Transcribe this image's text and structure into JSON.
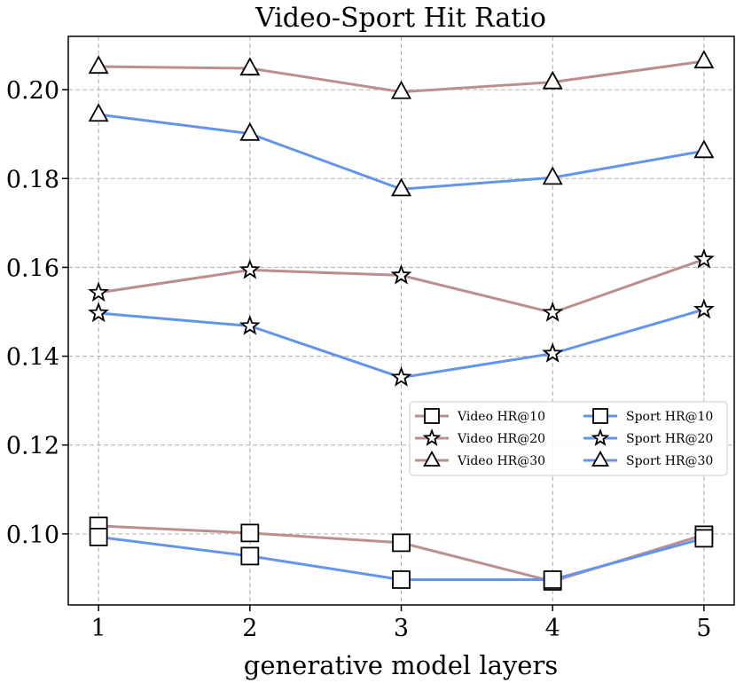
{
  "chart_data": {
    "type": "line",
    "title": "Video-Sport Hit Ratio",
    "xlabel": "generative model layers",
    "ylabel": "",
    "x": [
      1,
      2,
      3,
      4,
      5
    ],
    "xticks": [
      "1",
      "2",
      "3",
      "4",
      "5"
    ],
    "xlim": [
      0.8,
      5.2
    ],
    "ylim": [
      0.084,
      0.212
    ],
    "yticks": [
      0.1,
      0.12,
      0.14,
      0.16,
      0.18,
      0.2
    ],
    "ytick_labels": [
      "0.10",
      "0.12",
      "0.14",
      "0.16",
      "0.18",
      "0.20"
    ],
    "grid": true,
    "legend_position": "center-right",
    "colors": {
      "video": "#bc8f8f",
      "sport": "#6495ed"
    },
    "series": [
      {
        "name": "Video HR@10",
        "group": "video",
        "marker": "square",
        "values": [
          0.1018,
          0.1002,
          0.098,
          0.0893,
          0.0998
        ]
      },
      {
        "name": "Video HR@20",
        "group": "video",
        "marker": "star",
        "values": [
          0.1543,
          0.1594,
          0.1582,
          0.1498,
          0.1618
        ]
      },
      {
        "name": "Video HR@30",
        "group": "video",
        "marker": "triangle",
        "values": [
          0.2052,
          0.2048,
          0.1995,
          0.2017,
          0.2064
        ]
      },
      {
        "name": "Sport HR@10",
        "group": "sport",
        "marker": "square",
        "values": [
          0.0993,
          0.095,
          0.0897,
          0.0897,
          0.099
        ]
      },
      {
        "name": "Sport HR@20",
        "group": "sport",
        "marker": "star",
        "values": [
          0.1497,
          0.1468,
          0.1352,
          0.1406,
          0.1505
        ]
      },
      {
        "name": "Sport HR@30",
        "group": "sport",
        "marker": "triangle",
        "values": [
          0.1944,
          0.1901,
          0.1776,
          0.1802,
          0.1862
        ]
      }
    ]
  }
}
